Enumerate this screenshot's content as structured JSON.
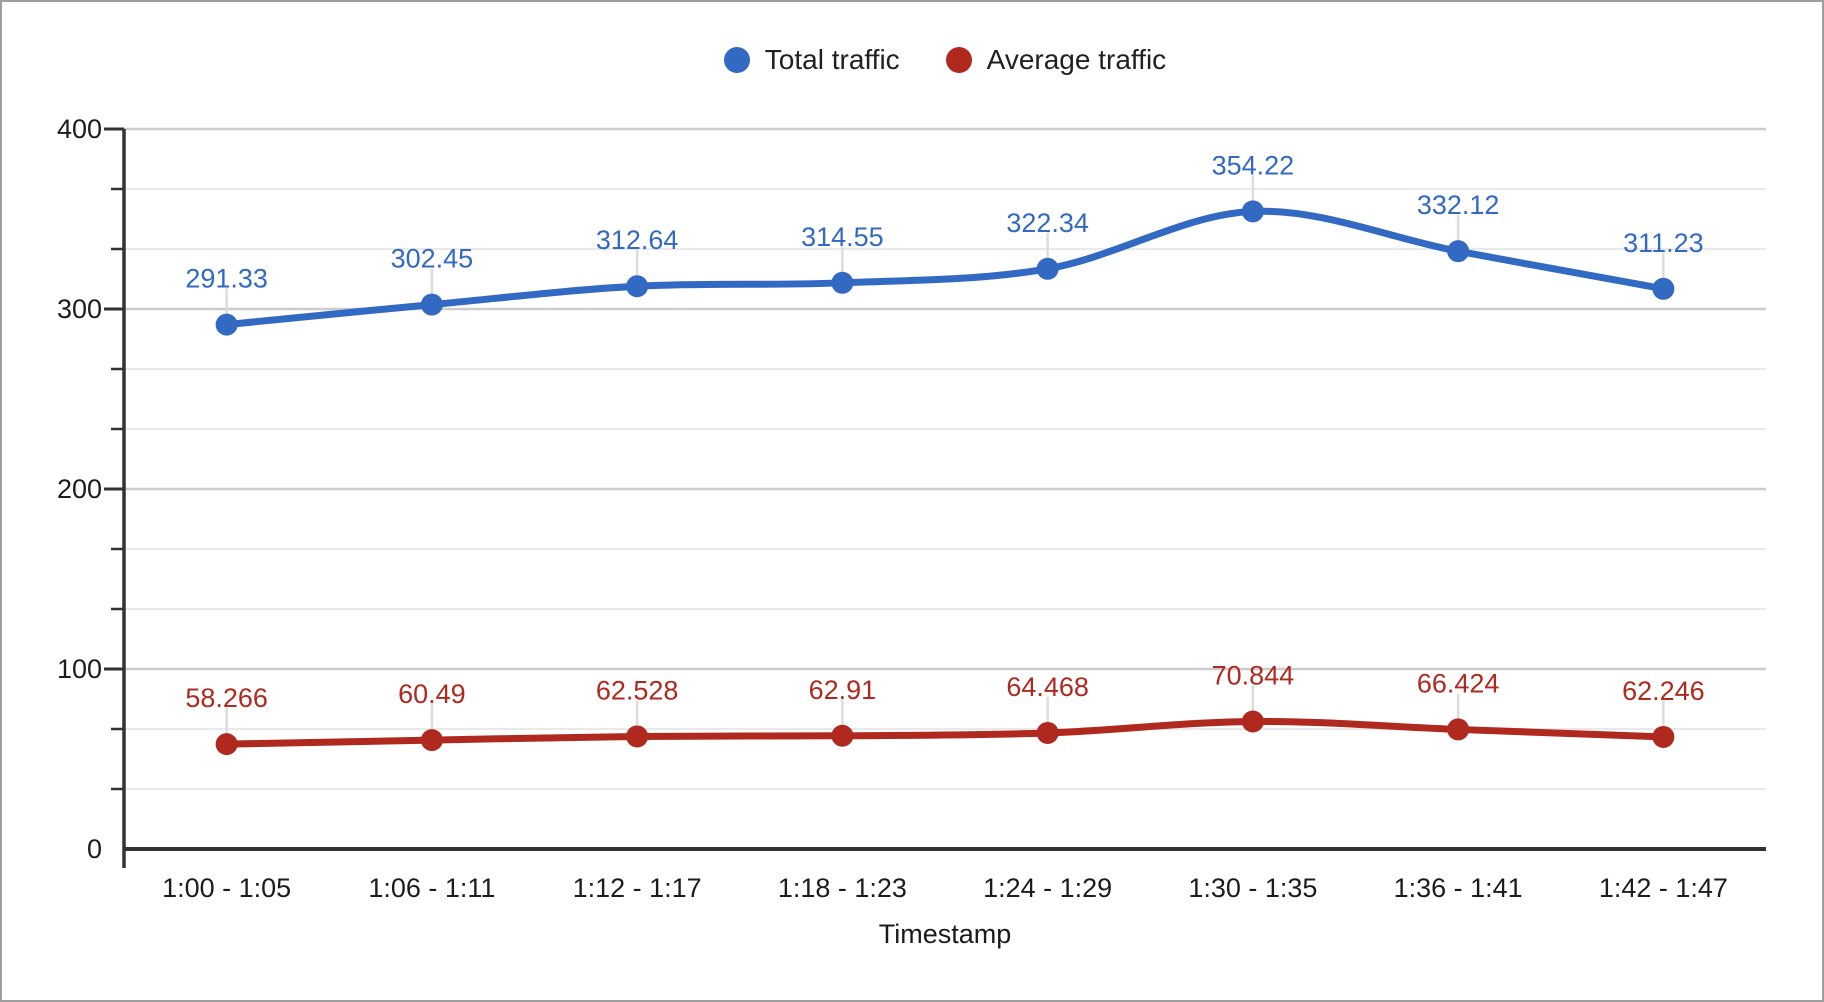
{
  "chart_data": {
    "type": "line",
    "title": "",
    "xlabel": "Timestamp",
    "ylabel": "",
    "categories": [
      "1:00 - 1:05",
      "1:06 - 1:11",
      "1:12 - 1:17",
      "1:18 - 1:23",
      "1:24 - 1:29",
      "1:30 - 1:35",
      "1:36 - 1:41",
      "1:42 - 1:47"
    ],
    "series": [
      {
        "name": "Total traffic",
        "color": "#3269C2",
        "values": [
          291.33,
          302.45,
          312.64,
          314.55,
          322.34,
          354.22,
          332.12,
          311.23
        ],
        "labels": [
          "291.33",
          "302.45",
          "312.64",
          "314.55",
          "322.34",
          "354.22",
          "332.12",
          "311.23"
        ]
      },
      {
        "name": "Average traffic",
        "color": "#B0291E",
        "values": [
          58.266,
          60.49,
          62.528,
          62.91,
          64.468,
          70.844,
          66.424,
          62.246
        ],
        "labels": [
          "58.266",
          "60.49",
          "62.528",
          "62.91",
          "64.468",
          "70.844",
          "66.424",
          "62.246"
        ]
      }
    ],
    "y_axis": {
      "min": 0,
      "max": 400,
      "major_step": 100,
      "minor_divisions": 3,
      "tick_labels": [
        "0",
        "100",
        "200",
        "300",
        "400"
      ]
    },
    "legend_position": "top-center",
    "grid": {
      "horizontal": true,
      "vertical": false,
      "major_color": "#cccccc",
      "minor_color": "#e9e9e9"
    },
    "smooth_lines": true,
    "point_markers": true,
    "axis_line_color": "#333333",
    "leader_line_color": "#dcdcdc",
    "background_color": "#ffffff",
    "border_color": "#9e9e9e"
  }
}
